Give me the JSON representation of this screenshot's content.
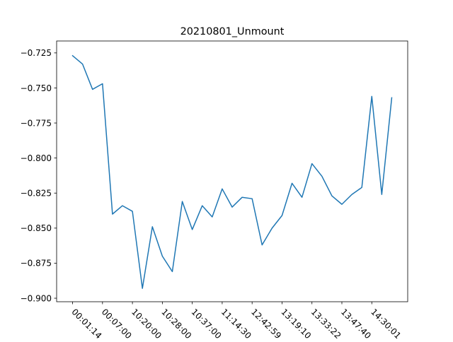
{
  "chart_data": {
    "type": "line",
    "title": "20210801_Unmount",
    "xlabel": "",
    "ylabel": "",
    "x_tick_labels": [
      "00:01:14",
      "00:07:00",
      "10:20:00",
      "10:28:00",
      "10:37:00",
      "11:14:30",
      "12:42:59",
      "13:19:10",
      "13:33:22",
      "13:47:40",
      "14:30:01"
    ],
    "x_tick_indices": [
      0,
      3,
      6,
      9,
      12,
      15,
      18,
      21,
      24,
      27,
      30
    ],
    "ylim": [
      -0.9025,
      -0.7165
    ],
    "y_ticks": [
      -0.725,
      -0.75,
      -0.775,
      -0.8,
      -0.825,
      -0.85,
      -0.875,
      -0.9
    ],
    "y_tick_labels": [
      "−0.725",
      "−0.750",
      "−0.775",
      "−0.800",
      "−0.825",
      "−0.850",
      "−0.875",
      "−0.900"
    ],
    "x_index_range": [
      -1.6,
      33.6
    ],
    "grid": false,
    "line_color": "#1f77b4",
    "series": [
      {
        "values": [
          -0.727,
          -0.733,
          -0.751,
          -0.747,
          -0.84,
          -0.834,
          -0.838,
          -0.893,
          -0.849,
          -0.87,
          -0.881,
          -0.831,
          -0.851,
          -0.834,
          -0.842,
          -0.822,
          -0.835,
          -0.828,
          -0.829,
          -0.862,
          -0.85,
          -0.841,
          -0.818,
          -0.828,
          -0.804,
          -0.813,
          -0.827,
          -0.833,
          -0.826,
          -0.821,
          -0.756,
          -0.826,
          -0.757
        ]
      }
    ]
  }
}
